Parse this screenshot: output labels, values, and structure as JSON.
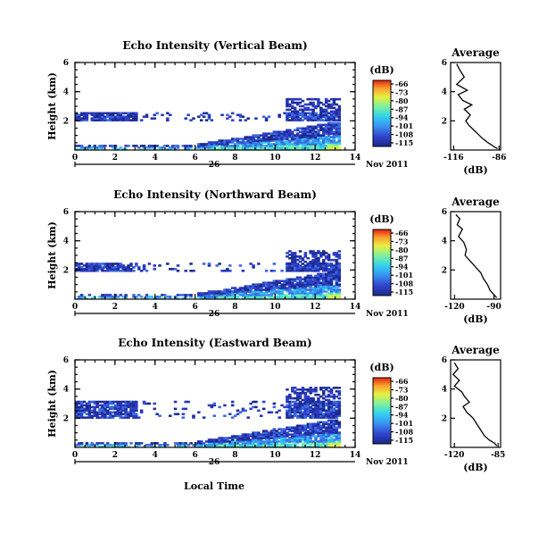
{
  "figure": {
    "xlabel": "Local Time",
    "date_day": "26",
    "date_month_year": "Nov 2011",
    "colorbar_unit": "(dB)",
    "avg_xlabel": "(dB)",
    "avg_title": "Average"
  },
  "chart_data": [
    {
      "type": "heatmap",
      "title": "Echo Intensity (Vertical Beam)",
      "xlabel": "Local Time",
      "ylabel": "Height (km)",
      "xlim": [
        0,
        14
      ],
      "ylim": [
        0,
        6
      ],
      "xticks": [
        0,
        2,
        4,
        6,
        8,
        10,
        12,
        14
      ],
      "yticks": [
        2,
        4,
        6
      ],
      "colorbar": {
        "label": "(dB)",
        "levels": [
          -66,
          -73,
          -80,
          -87,
          -94,
          -101,
          -108,
          -115
        ],
        "tick_labels": [
          "-66",
          "-73",
          "-80",
          "-87",
          "-94",
          "-101",
          "-108",
          "-115"
        ]
      },
      "data_extent": {
        "x_max": 13.2,
        "cloud_base_km": 2.0,
        "cloud_top_km": 2.6
      }
    },
    {
      "type": "line",
      "title": "Average",
      "xlabel": "(dB)",
      "ylabel": "",
      "xlim": [
        -118,
        -85
      ],
      "ylim": [
        0,
        6
      ],
      "xticks": [
        -116,
        -86
      ],
      "xtick_labels": [
        "-116",
        "-86"
      ],
      "yticks": [
        2,
        4,
        6
      ],
      "x": [
        -114,
        -112,
        -109,
        -114,
        -107,
        -113,
        -110,
        -104,
        -109,
        -105,
        -108,
        -106,
        -103,
        -100,
        -97,
        -94,
        -91,
        -89,
        -87
      ],
      "y": [
        5.9,
        5.5,
        5.0,
        4.5,
        4.1,
        3.8,
        3.4,
        3.1,
        2.8,
        2.4,
        2.0,
        1.7,
        1.4,
        1.1,
        0.8,
        0.55,
        0.35,
        0.2,
        0.1
      ]
    },
    {
      "type": "heatmap",
      "title": "Echo Intensity (Northward Beam)",
      "xlabel": "Local Time",
      "ylabel": "Height (km)",
      "xlim": [
        0,
        14
      ],
      "ylim": [
        0,
        6
      ],
      "xticks": [
        0,
        2,
        4,
        6,
        8,
        10,
        12,
        14
      ],
      "yticks": [
        2,
        4,
        6
      ],
      "colorbar": {
        "label": "(dB)",
        "levels": [
          -66,
          -73,
          -80,
          -87,
          -94,
          -101,
          -108,
          -115
        ],
        "tick_labels": [
          "-66",
          "-73",
          "-80",
          "-87",
          "-94",
          "-101",
          "-108",
          "-115"
        ]
      },
      "data_extent": {
        "x_max": 13.2,
        "cloud_base_km": 1.9,
        "cloud_top_km": 2.4
      }
    },
    {
      "type": "line",
      "title": "Average",
      "xlabel": "(dB)",
      "ylabel": "",
      "xlim": [
        -123,
        -85
      ],
      "ylim": [
        0,
        6
      ],
      "xticks": [
        -120,
        -90
      ],
      "xtick_labels": [
        "-120",
        "-90"
      ],
      "yticks": [
        2,
        4,
        6
      ],
      "x": [
        -119,
        -116,
        -118,
        -114,
        -117,
        -113,
        -111,
        -112,
        -108,
        -104,
        -100,
        -98,
        -95,
        -93,
        -90,
        -88
      ],
      "y": [
        5.8,
        5.5,
        5.1,
        4.8,
        4.3,
        3.9,
        3.4,
        3.0,
        2.6,
        2.2,
        1.8,
        1.4,
        1.0,
        0.6,
        0.3,
        0.1
      ]
    },
    {
      "type": "heatmap",
      "title": "Echo Intensity (Eastward Beam)",
      "xlabel": "Local Time",
      "ylabel": "Height (km)",
      "xlim": [
        0,
        14
      ],
      "ylim": [
        0,
        6
      ],
      "xticks": [
        0,
        2,
        4,
        6,
        8,
        10,
        12,
        14
      ],
      "yticks": [
        2,
        4,
        6
      ],
      "colorbar": {
        "label": "(dB)",
        "levels": [
          -66,
          -73,
          -80,
          -87,
          -94,
          -101,
          -108,
          -115
        ],
        "tick_labels": [
          "-66",
          "-73",
          "-80",
          "-87",
          "-94",
          "-101",
          "-108",
          "-115"
        ]
      },
      "data_extent": {
        "x_max": 13.2,
        "cloud_base_km": 2.0,
        "cloud_top_km": 3.2
      }
    },
    {
      "type": "line",
      "title": "Average",
      "xlabel": "(dB)",
      "ylabel": "",
      "xlim": [
        -123,
        -83
      ],
      "ylim": [
        0,
        6
      ],
      "xticks": [
        -120,
        -85
      ],
      "xtick_labels": [
        "-120",
        "-85"
      ],
      "yticks": [
        2,
        4,
        6
      ],
      "x": [
        -120,
        -117,
        -121,
        -116,
        -120,
        -114,
        -112,
        -108,
        -113,
        -110,
        -105,
        -102,
        -99,
        -96,
        -92,
        -88,
        -86
      ],
      "y": [
        5.8,
        5.4,
        5.0,
        4.6,
        4.2,
        3.8,
        3.5,
        3.1,
        2.8,
        2.4,
        2.0,
        1.6,
        1.2,
        0.8,
        0.5,
        0.3,
        0.1
      ]
    }
  ]
}
